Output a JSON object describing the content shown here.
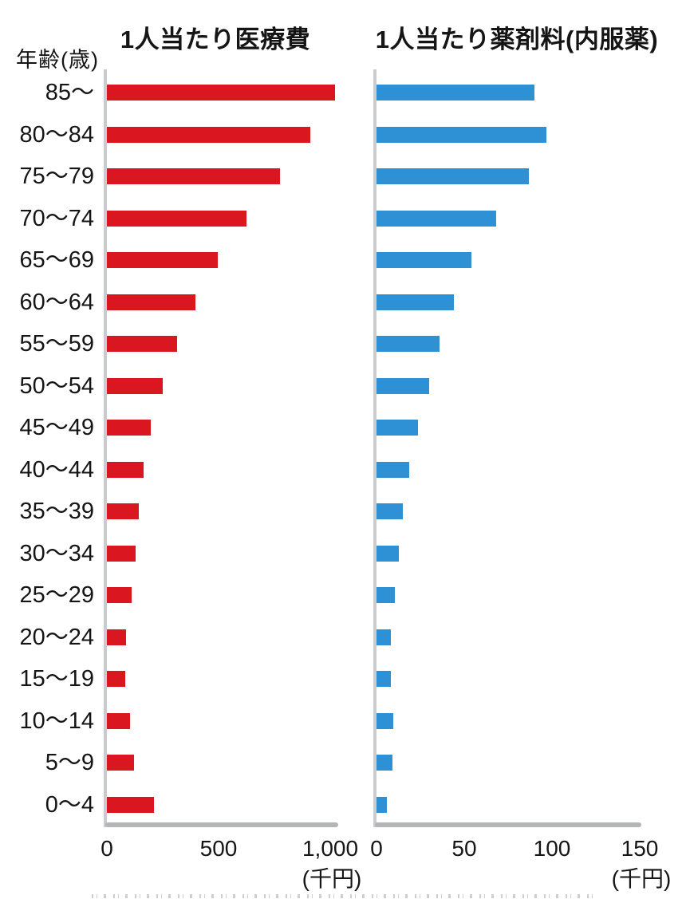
{
  "header": {
    "age_axis_label": "年齢(歳)"
  },
  "categories": [
    "85〜",
    "80〜84",
    "75〜79",
    "70〜74",
    "65〜69",
    "60〜64",
    "55〜59",
    "50〜54",
    "45〜49",
    "40〜44",
    "35〜39",
    "30〜34",
    "25〜29",
    "20〜24",
    "15〜19",
    "10〜14",
    "5〜9",
    "0〜4"
  ],
  "chart_data": [
    {
      "type": "bar",
      "orientation": "horizontal",
      "title": "1人当たり医療費",
      "unit_label": "(千円)",
      "color": "#da1720",
      "axis_color": "#b3b6b7",
      "categories": [
        "85〜",
        "80〜84",
        "75〜79",
        "70〜74",
        "65〜69",
        "60〜64",
        "55〜59",
        "50〜54",
        "45〜49",
        "40〜44",
        "35〜39",
        "30〜34",
        "25〜29",
        "20〜24",
        "15〜19",
        "10〜14",
        "5〜9",
        "0〜4"
      ],
      "values": [
        1020,
        910,
        775,
        625,
        495,
        395,
        315,
        250,
        198,
        165,
        143,
        128,
        110,
        85,
        82,
        103,
        120,
        210
      ],
      "xlim": [
        0,
        1030
      ],
      "xticks": [
        {
          "value": 0,
          "label": "0"
        },
        {
          "value": 500,
          "label": "500"
        },
        {
          "value": 1000,
          "label": "1,000"
        }
      ],
      "grid": false,
      "legend": false
    },
    {
      "type": "bar",
      "orientation": "horizontal",
      "title": "1人当たり薬剤料(内服薬)",
      "unit_label": "(千円)",
      "color": "#2e91d5",
      "axis_color": "#b3b6b7",
      "categories": [
        "85〜",
        "80〜84",
        "75〜79",
        "70〜74",
        "65〜69",
        "60〜64",
        "55〜59",
        "50〜54",
        "45〜49",
        "40〜44",
        "35〜39",
        "30〜34",
        "25〜29",
        "20〜24",
        "15〜19",
        "10〜14",
        "5〜9",
        "0〜4"
      ],
      "values": [
        90,
        97,
        87,
        68,
        54,
        44,
        36,
        30,
        23.5,
        18.5,
        15,
        12.5,
        10.5,
        8,
        8,
        9.5,
        9,
        6
      ],
      "xlim": [
        0,
        150
      ],
      "xticks": [
        {
          "value": 0,
          "label": "0"
        },
        {
          "value": 50,
          "label": "50"
        },
        {
          "value": 100,
          "label": "100"
        },
        {
          "value": 150,
          "label": "150"
        }
      ],
      "grid": false,
      "legend": false
    }
  ]
}
